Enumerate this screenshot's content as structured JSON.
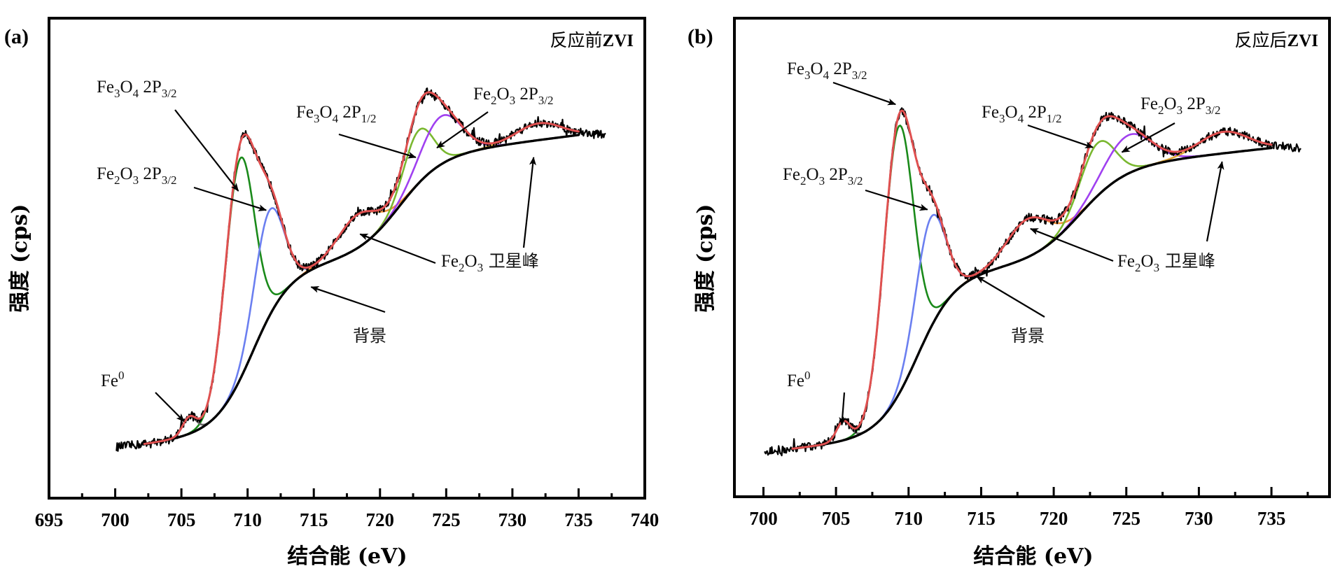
{
  "figure": {
    "panels": [
      {
        "id": "a",
        "label": "(a)",
        "title_cjk": "反应前",
        "title_latin": "ZVI"
      },
      {
        "id": "b",
        "label": "(b)",
        "title_cjk": "反应后",
        "title_latin": "ZVI"
      }
    ],
    "xlabel": "结合能 (eV)",
    "ylabel": "强度 (cps)"
  },
  "colors": {
    "raw": "#000000",
    "envelope": "#e05050",
    "fe3o4_2p32": "#1a8a1a",
    "fe2o3_2p32_low": "#6b7ff0",
    "fe0": "#666666",
    "satellite": "#f0903a",
    "fe3o4_2p12": "#7ab830",
    "fe2o3_2p32_high": "#a040f0",
    "satellite_2": "#e0a838",
    "background": "#000000"
  },
  "annotations": {
    "fe3o4_2p32": {
      "main": "Fe",
      "sub1": "3",
      "mid": "O",
      "sub2": "4",
      "tail": " 2P",
      "sub3": "3/2"
    },
    "fe2o3_2p32": {
      "main": "Fe",
      "sub1": "2",
      "mid": "O",
      "sub2": "3",
      "tail": " 2P",
      "sub3": "3/2"
    },
    "fe3o4_2p12": {
      "main": "Fe",
      "sub1": "3",
      "mid": "O",
      "sub2": "4",
      "tail": " 2P",
      "sub3": "1/2"
    },
    "fe0": {
      "main": "Fe",
      "sup": "0"
    },
    "satellite": {
      "main": "Fe",
      "sub1": "2",
      "mid": "O",
      "sub2": "3",
      "tail_cjk": " 卫星峰"
    },
    "background": {
      "text": "背景"
    }
  },
  "chart_data": [
    {
      "type": "line",
      "panel": "a",
      "title": "反应前ZVI",
      "xlabel": "结合能 (eV)",
      "ylabel": "强度 (cps)",
      "xlim": [
        695,
        740
      ],
      "ylim": [
        0,
        1
      ],
      "x_ticks": [
        695,
        700,
        705,
        710,
        715,
        720,
        725,
        730,
        735,
        740
      ],
      "x_tick_labels": [
        "695",
        "700",
        "705",
        "710",
        "715",
        "720",
        "725",
        "730",
        "735",
        "740"
      ],
      "y_ticks": [],
      "grid": false,
      "legend": "none",
      "raw_range": [
        700.1,
        737.0
      ],
      "fit_range": [
        702.2,
        735.0
      ],
      "background": {
        "start": 0.112,
        "end": 0.695,
        "steps": [
          {
            "center": 710.4,
            "width": 1.4,
            "amp": 0.33
          },
          {
            "center": 721.5,
            "width": 1.6,
            "amp": 0.2
          }
        ],
        "slope": 0.0035
      },
      "series": [
        {
          "name": "Fe3O4 2P3/2",
          "key": "fe3o4_2p32",
          "center": 709.4,
          "fwhm": 2.6,
          "height": 0.46
        },
        {
          "name": "Fe2O3 2P3/2",
          "key": "fe2o3_2p32_low",
          "center": 711.6,
          "fwhm": 2.6,
          "height": 0.22
        },
        {
          "name": "Fe0",
          "key": "fe0",
          "center": 705.6,
          "fwhm": 1.2,
          "height": 0.035
        },
        {
          "name": "Fe2O3 卫星峰",
          "key": "satellite",
          "center": 718.3,
          "fwhm": 3.5,
          "height": 0.07
        },
        {
          "name": "Fe3O4 2P1/2",
          "key": "fe3o4_2p12",
          "center": 722.9,
          "fwhm": 2.6,
          "height": 0.11
        },
        {
          "name": "Fe2O3 2P3/2",
          "key": "fe2o3_2p32_high",
          "center": 724.6,
          "fwhm": 3.6,
          "height": 0.1
        },
        {
          "name": "Fe2O3 卫星峰",
          "key": "satellite_2",
          "center": 732.0,
          "fwhm": 4.0,
          "height": 0.035
        }
      ],
      "annotations": [
        {
          "label": "Fe3O4 2P3/2",
          "target_x": 709.3,
          "target_y": 0.64
        },
        {
          "label": "Fe2O3 2P3/2",
          "target_x": 711.4,
          "target_y": 0.6
        },
        {
          "label": "Fe3O4 2P1/2",
          "target_x": 722.7,
          "target_y": 0.71
        },
        {
          "label": "Fe2O3 2P3/2",
          "target_x": 724.3,
          "target_y": 0.73
        },
        {
          "label": "Fe2O3 卫星峰",
          "target_x": 718.5,
          "target_y": 0.55
        },
        {
          "label": "Fe2O3 卫星峰",
          "target_x": 731.6,
          "target_y": 0.71
        },
        {
          "label": "背景",
          "target_x": 714.8,
          "target_y": 0.44
        },
        {
          "label": "Fe0",
          "target_x": 705.2,
          "target_y": 0.16
        }
      ]
    },
    {
      "type": "line",
      "panel": "b",
      "title": "反应后ZVI",
      "xlabel": "结合能 (eV)",
      "ylabel": "强度 (cps)",
      "xlim": [
        698,
        739
      ],
      "ylim": [
        0,
        1
      ],
      "x_ticks": [
        700,
        705,
        710,
        715,
        720,
        725,
        730,
        735
      ],
      "x_tick_labels": [
        "700",
        "705",
        "710",
        "715",
        "720",
        "725",
        "730",
        "735"
      ],
      "y_ticks": [],
      "grid": false,
      "legend": "none",
      "raw_range": [
        700.1,
        737.0
      ],
      "fit_range": [
        702.0,
        735.0
      ],
      "background": {
        "start": 0.1,
        "end": 0.68,
        "steps": [
          {
            "center": 710.6,
            "width": 1.3,
            "amp": 0.33
          },
          {
            "center": 721.8,
            "width": 1.6,
            "amp": 0.19
          }
        ],
        "slope": 0.0033
      },
      "series": [
        {
          "name": "Fe3O4 2P3/2",
          "key": "fe3o4_2p32",
          "center": 709.3,
          "fwhm": 2.4,
          "height": 0.56
        },
        {
          "name": "Fe2O3 2P3/2",
          "key": "fe2o3_2p32_low",
          "center": 711.5,
          "fwhm": 2.4,
          "height": 0.23
        },
        {
          "name": "Fe0",
          "key": "fe0",
          "center": 705.5,
          "fwhm": 1.1,
          "height": 0.04
        },
        {
          "name": "Fe2O3 卫星峰",
          "key": "satellite",
          "center": 718.2,
          "fwhm": 3.4,
          "height": 0.08
        },
        {
          "name": "Fe3O4 2P1/2",
          "key": "fe3o4_2p12",
          "center": 723.0,
          "fwhm": 2.8,
          "height": 0.11
        },
        {
          "name": "Fe2O3 2P3/2",
          "key": "fe2o3_2p32_high",
          "center": 725.1,
          "fwhm": 3.8,
          "height": 0.08
        },
        {
          "name": "Fe2O3 卫星峰",
          "key": "satellite_2",
          "center": 731.7,
          "fwhm": 4.0,
          "height": 0.045
        }
      ],
      "annotations": [
        {
          "label": "Fe3O4 2P3/2",
          "target_x": 709.1,
          "target_y": 0.82
        },
        {
          "label": "Fe2O3 2P3/2",
          "target_x": 711.3,
          "target_y": 0.6
        },
        {
          "label": "Fe3O4 2P1/2",
          "target_x": 722.7,
          "target_y": 0.73
        },
        {
          "label": "Fe2O3 2P3/2",
          "target_x": 724.7,
          "target_y": 0.72
        },
        {
          "label": "Fe2O3 卫星峰",
          "target_x": 718.4,
          "target_y": 0.56
        },
        {
          "label": "Fe2O3 卫星峰",
          "target_x": 731.6,
          "target_y": 0.7
        },
        {
          "label": "背景",
          "target_x": 714.7,
          "target_y": 0.46
        },
        {
          "label": "Fe0",
          "target_x": 705.4,
          "target_y": 0.15
        }
      ]
    }
  ]
}
